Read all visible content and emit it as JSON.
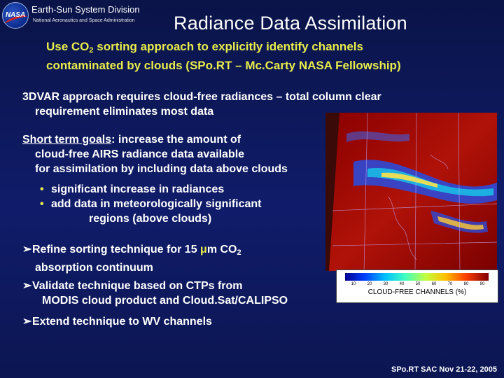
{
  "header": {
    "logo_text": "NASA",
    "division": "Earth-Sun System Division",
    "agency": "National Aeronautics and Space Administration"
  },
  "title": "Radiance Data Assimilation",
  "subtitle": {
    "line1_pre": "Use CO",
    "line1_sub": "2",
    "line1_post": " sorting approach to explicitly identify channels",
    "line2": "contaminated by clouds (SPo.RT – Mc.Carty NASA Fellowship)"
  },
  "para1": {
    "line1": "3DVAR approach requires cloud-free radiances – total column clear",
    "line2": "requirement eliminates most data"
  },
  "goals": {
    "label": "Short term goals",
    "line1_rest": ": increase the amount of",
    "line2": "cloud-free AIRS radiance data available",
    "line3": "for assimilation by including data above clouds"
  },
  "bullets": [
    {
      "text": "significant increase in radiances"
    },
    {
      "text": "add data in meteorologically significant"
    },
    {
      "text": "regions (above clouds)"
    }
  ],
  "arrows": {
    "a1_line1_pre": "Refine sorting technique for 15 ",
    "a1_mu": "μ",
    "a1_line1_mid": "m CO",
    "a1_sub": "2",
    "a1_line2": "absorption continuum",
    "a2_line1": "Validate technique based on CTPs from",
    "a2_line2": "MODIS cloud product and Cloud.Sat/CALIPSO",
    "a3_line1": "Extend technique to WV channels"
  },
  "colorbar": {
    "ticks": [
      "10",
      "20",
      "30",
      "40",
      "50",
      "60",
      "70",
      "80",
      "90"
    ],
    "label": "CLOUD-FREE CHANNELS (%)"
  },
  "footer": "SPo.RT SAC Nov 21-22, 2005",
  "colors": {
    "accent_yellow": "#e8ec4a",
    "background_navy": "#101c6a"
  }
}
